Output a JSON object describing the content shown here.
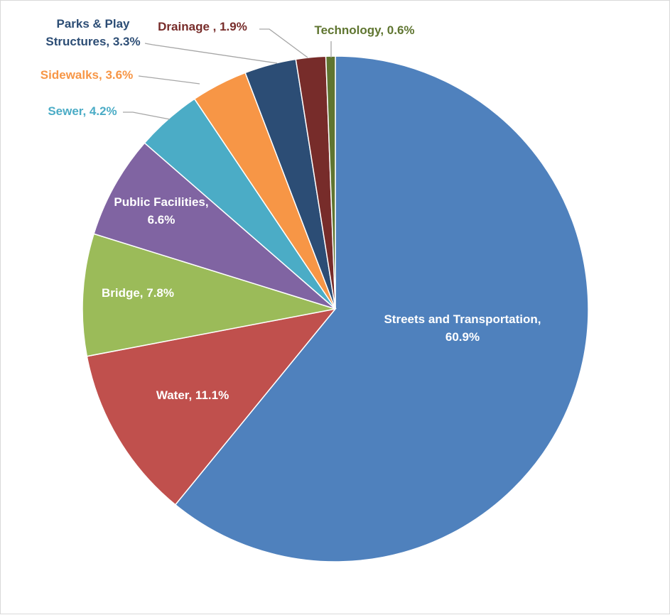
{
  "chart_data": {
    "type": "pie",
    "title": "",
    "start_angle_deg": 0,
    "direction": "clockwise",
    "slices": [
      {
        "name": "Streets and Transportation",
        "value": 60.9,
        "label": "Streets and Transportation, 60.9%",
        "label_lines": [
          "Streets and Transportation,",
          "60.9%"
        ],
        "color": "#4f81bd",
        "label_color": "#ffffff",
        "label_placement": "inside"
      },
      {
        "name": "Water",
        "value": 11.1,
        "label": "Water, 11.1%",
        "label_lines": [
          "Water, 11.1%"
        ],
        "color": "#c0504d",
        "label_color": "#ffffff",
        "label_placement": "inside"
      },
      {
        "name": "Bridge",
        "value": 7.8,
        "label": "Bridge, 7.8%",
        "label_lines": [
          "Bridge, 7.8%"
        ],
        "color": "#9bbb59",
        "label_color": "#ffffff",
        "label_placement": "inside"
      },
      {
        "name": "Public Facilities",
        "value": 6.6,
        "label": "Public Facilities, 6.6%",
        "label_lines": [
          "Public Facilities,",
          "6.6%"
        ],
        "color": "#8064a2",
        "label_color": "#ffffff",
        "label_placement": "inside"
      },
      {
        "name": "Sewer",
        "value": 4.2,
        "label": "Sewer, 4.2%",
        "label_lines": [
          "Sewer, 4.2%"
        ],
        "color": "#4bacc6",
        "label_color": "#4bacc6",
        "label_placement": "outside"
      },
      {
        "name": "Sidewalks",
        "value": 3.6,
        "label": "Sidewalks, 3.6%",
        "label_lines": [
          "Sidewalks, 3.6%"
        ],
        "color": "#f79646",
        "label_color": "#f79646",
        "label_placement": "outside"
      },
      {
        "name": "Parks & Play Structures",
        "value": 3.3,
        "label": "Parks & Play Structures, 3.3%",
        "label_lines": [
          "Parks & Play",
          "Structures, 3.3%"
        ],
        "color": "#2c4d75",
        "label_color": "#2c4d75",
        "label_placement": "outside"
      },
      {
        "name": "Drainage",
        "value": 1.9,
        "label": "Drainage , 1.9%",
        "label_lines": [
          "Drainage , 1.9%"
        ],
        "color": "#772c2a",
        "label_color": "#772c2a",
        "label_placement": "outside"
      },
      {
        "name": "Technology",
        "value": 0.6,
        "label": "Technology, 0.6%",
        "label_lines": [
          "Technology, 0.6%"
        ],
        "color": "#5f7530",
        "label_color": "#5f7530",
        "label_placement": "outside"
      }
    ],
    "legend": "none",
    "border_color": "#d9d9d9"
  }
}
